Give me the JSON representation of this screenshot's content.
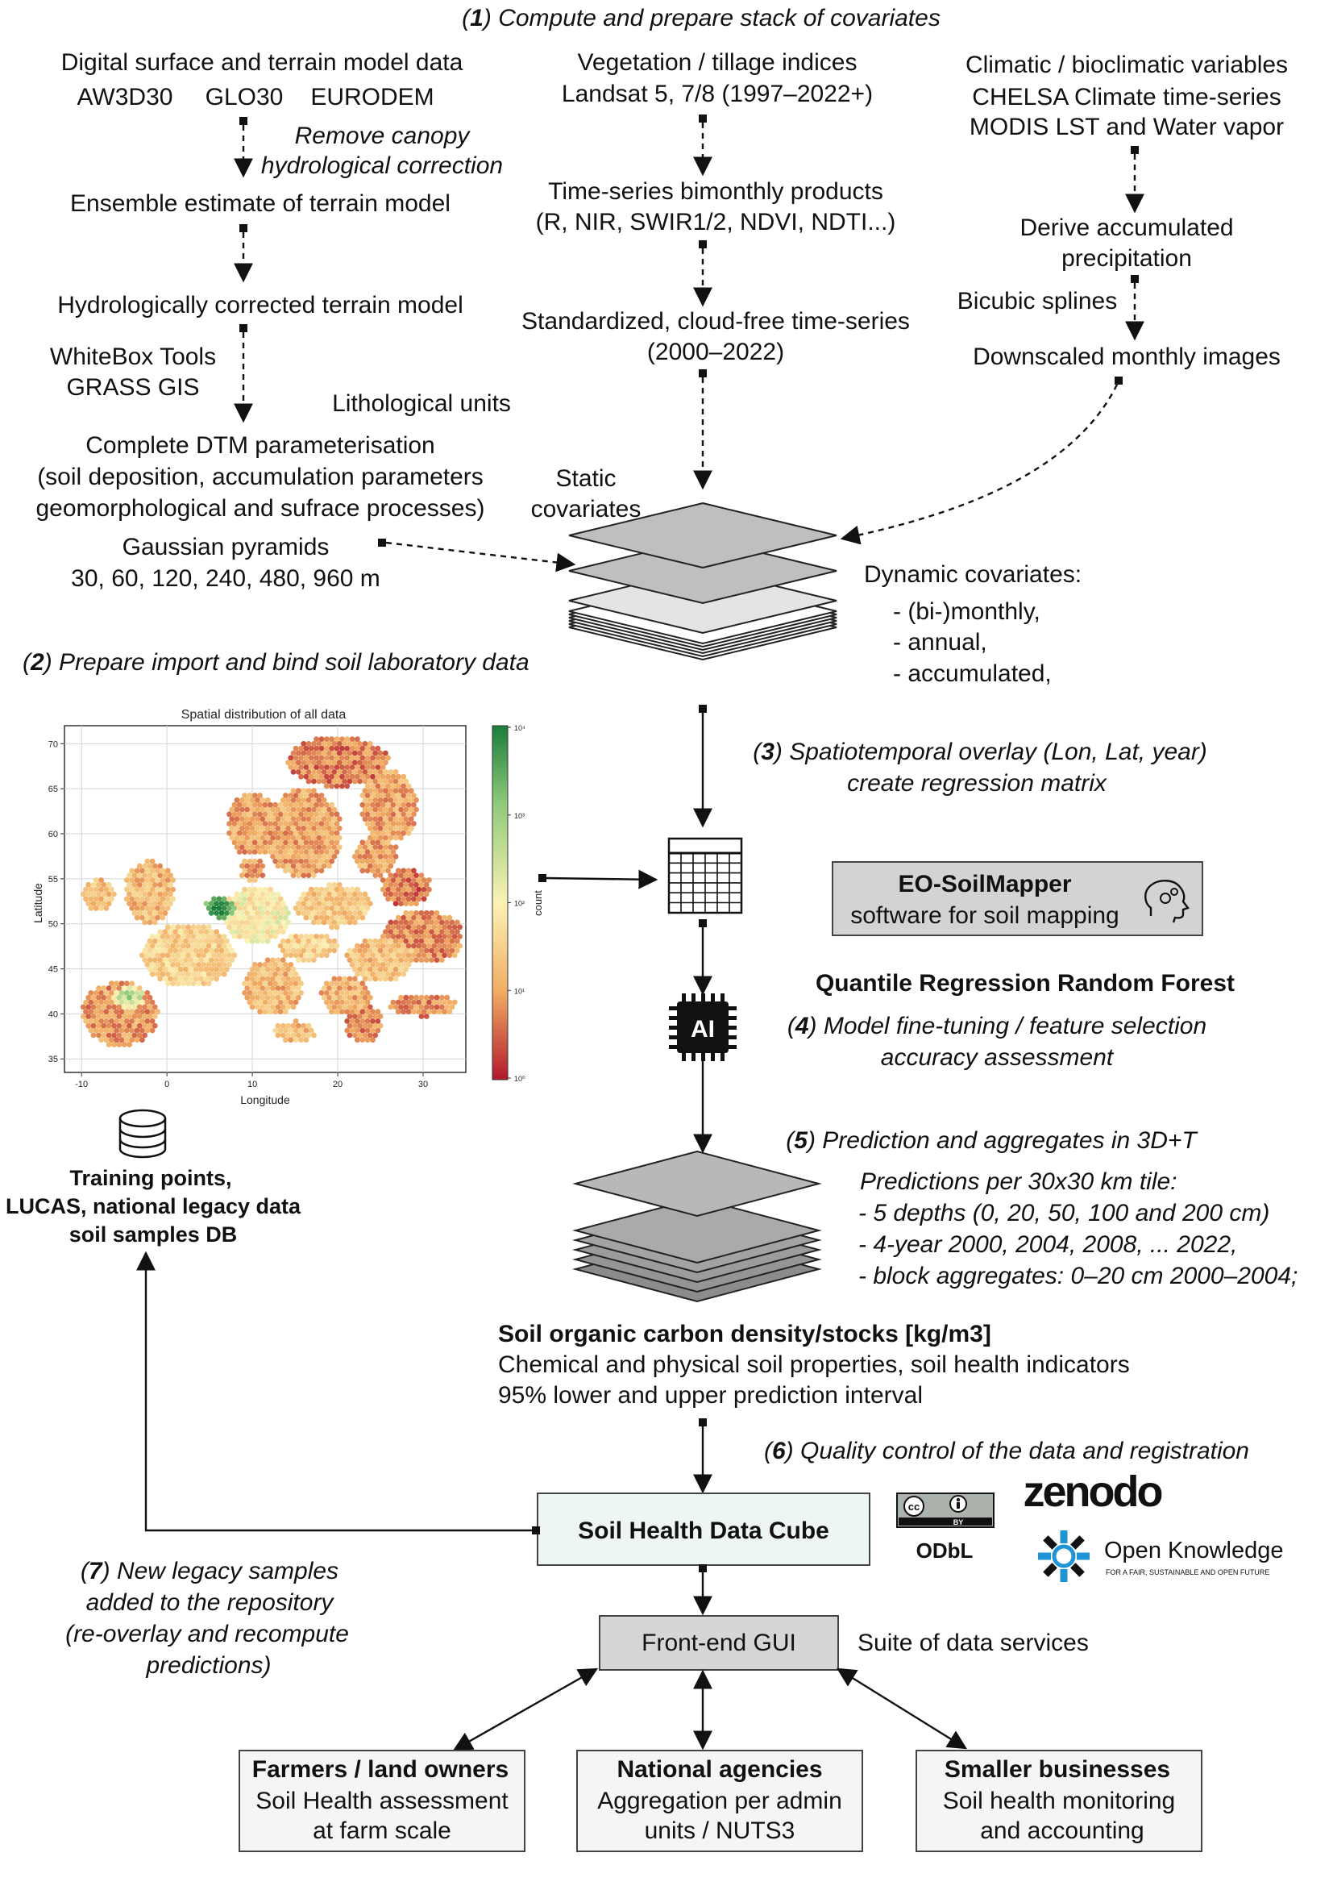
{
  "step1": {
    "num": "1",
    "title": "Compute and prepare stack of covariates",
    "dsm_title": "Digital surface and terrain model data",
    "dsm_sources": [
      "AW3D30",
      "GLO30",
      "EURODEM"
    ],
    "remove_canopy": [
      "Remove canopy",
      "hydrological correction"
    ],
    "ensemble": "Ensemble estimate of terrain model",
    "hydro_terrain": "Hydrologically corrected terrain model",
    "tools": [
      "WhiteBox Tools",
      "GRASS GIS"
    ],
    "litho": "Lithological units",
    "dtm_param": [
      "Complete DTM parameterisation",
      "(soil deposition, accumulation parameters",
      "geomorphological and sufrace processes)"
    ],
    "gauss": [
      "Gaussian pyramids",
      "30, 60, 120, 240, 480, 960 m"
    ],
    "veg_title": [
      "Vegetation / tillage indices",
      "Landsat 5, 7/8 (1997–2022+)"
    ],
    "bimonthly": [
      "Time-series bimonthly products",
      "(R, NIR, SWIR1/2, NDVI, NDTI...)"
    ],
    "standardized": [
      "Standardized, cloud-free time-series",
      "(2000–2022)"
    ],
    "clim_title": [
      "Climatic / bioclimatic variables",
      "CHELSA Climate time-series",
      "MODIS LST and Water vapor"
    ],
    "accum": [
      "Derive accumulated",
      "precipitation"
    ],
    "bicubic": "Bicubic splines",
    "downscaled": "Downscaled monthly images",
    "static": [
      "Static",
      "covariates"
    ],
    "dynamic_title": "Dynamic covariates:",
    "dynamic_items": [
      "- (bi-)monthly,",
      "- annual,",
      "- accumulated,"
    ]
  },
  "step2": {
    "num": "2",
    "title": "Prepare import and bind soil laboratory data",
    "db_label": [
      "Training points,",
      "LUCAS, national legacy data",
      "soil samples DB"
    ]
  },
  "map": {
    "title": "Spatial distribution of all data",
    "xlabel": "Longitude",
    "ylabel": "Latitude",
    "colorbar_label": "count"
  },
  "chart_data": {
    "type": "heatmap",
    "title": "Spatial distribution of all data",
    "xlabel": "Longitude",
    "ylabel": "Latitude",
    "xlim": [
      -12,
      35
    ],
    "ylim": [
      33.5,
      72
    ],
    "x_ticks": [
      -10,
      0,
      10,
      20,
      30
    ],
    "y_ticks": [
      35,
      40,
      45,
      50,
      55,
      60,
      65,
      70
    ],
    "grid": true,
    "colorbar": {
      "label": "count",
      "scale": "log",
      "ticks": [
        "10⁰",
        "10¹",
        "10²",
        "10³",
        "10⁴"
      ],
      "colors": [
        "#b2182b",
        "#f1ad64",
        "#fbf2b4",
        "#8fc97a",
        "#1a7d3a"
      ]
    }
  },
  "step3": {
    "num": "3",
    "title": [
      "Spatiotemporal overlay (Lon, Lat, year)",
      "create regression matrix"
    ]
  },
  "software": {
    "name": "EO-SoilMapper",
    "desc": "software for soil mapping"
  },
  "qrrf": "Quantile Regression Random Forest",
  "ai_label": "AI",
  "step4": {
    "num": "4",
    "title": [
      "Model fine-tuning / feature selection",
      "accuracy assessment"
    ]
  },
  "step5": {
    "num": "5",
    "title": "Prediction and aggregates in 3D+T",
    "pred_lines": [
      "Predictions per 30x30 km tile:",
      "- 5 depths (0, 20, 50, 100 and 200 cm)",
      "- 4-year 2000, 2004, 2008, ... 2022,",
      "- block aggregates: 0–20 cm 2000–2004;"
    ]
  },
  "soc": {
    "title": "Soil organic carbon density/stocks [kg/m3]",
    "lines": [
      "Chemical and physical soil properties, soil health indicators",
      "95% lower and upper prediction interval"
    ]
  },
  "step6": {
    "num": "6",
    "title": "Quality control of the data and registration"
  },
  "cube": "Soil Health Data Cube",
  "license": {
    "cc": "cc",
    "by": "BY",
    "odbl": "ODbL"
  },
  "zenodo": "zenodo",
  "ok": {
    "name": "Open Knowledge",
    "tagline": "FOR A FAIR, SUSTAINABLE AND OPEN FUTURE"
  },
  "step7": {
    "num": "7",
    "title": [
      "New legacy samples",
      "added to the repository",
      "(re-overlay and recompute",
      "predictions)"
    ]
  },
  "gui": "Front-end GUI",
  "services": "Suite of data services",
  "users": [
    {
      "title": "Farmers / land owners",
      "lines": [
        "Soil Health assessment",
        "at farm scale"
      ]
    },
    {
      "title": "National agencies",
      "lines": [
        "Aggregation per admin",
        "units / NUTS3"
      ]
    },
    {
      "title": "Smaller businesses",
      "lines": [
        "Soil health monitoring",
        "and accounting"
      ]
    }
  ],
  "colors": {
    "cube_fill": "#eef6f5",
    "gui_fill": "#d6d6d6",
    "software_fill": "#d3d3d3",
    "layer_dark": "#bfbfbf",
    "layer_light": "#e4e4e4"
  }
}
